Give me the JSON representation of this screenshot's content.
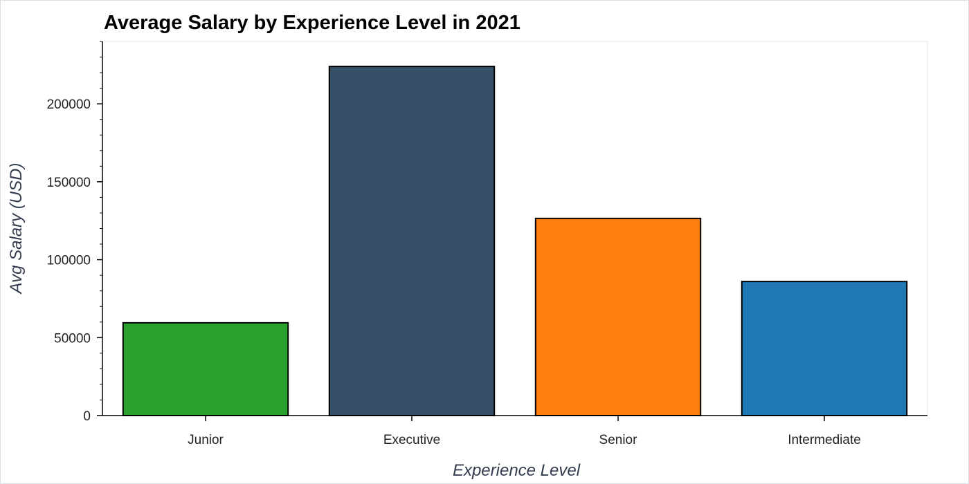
{
  "chart_data": {
    "type": "bar",
    "title": "Average Salary by Experience Level in 2021",
    "xlabel": "Experience Level",
    "ylabel": "Avg Salary (USD)",
    "categories": [
      "Junior",
      "Executive",
      "Senior",
      "Intermediate"
    ],
    "values": [
      59500,
      224000,
      126500,
      86000
    ],
    "colors": [
      "#2ca02c",
      "#344f66",
      "#ff7f0e",
      "#1f77b4"
    ],
    "ylim": [
      0,
      240000
    ],
    "yticks": [
      0,
      50000,
      100000,
      150000,
      200000
    ],
    "ytick_labels": [
      "0",
      "50000",
      "100000",
      "150000",
      "200000"
    ],
    "grid": false,
    "legend": "none"
  }
}
